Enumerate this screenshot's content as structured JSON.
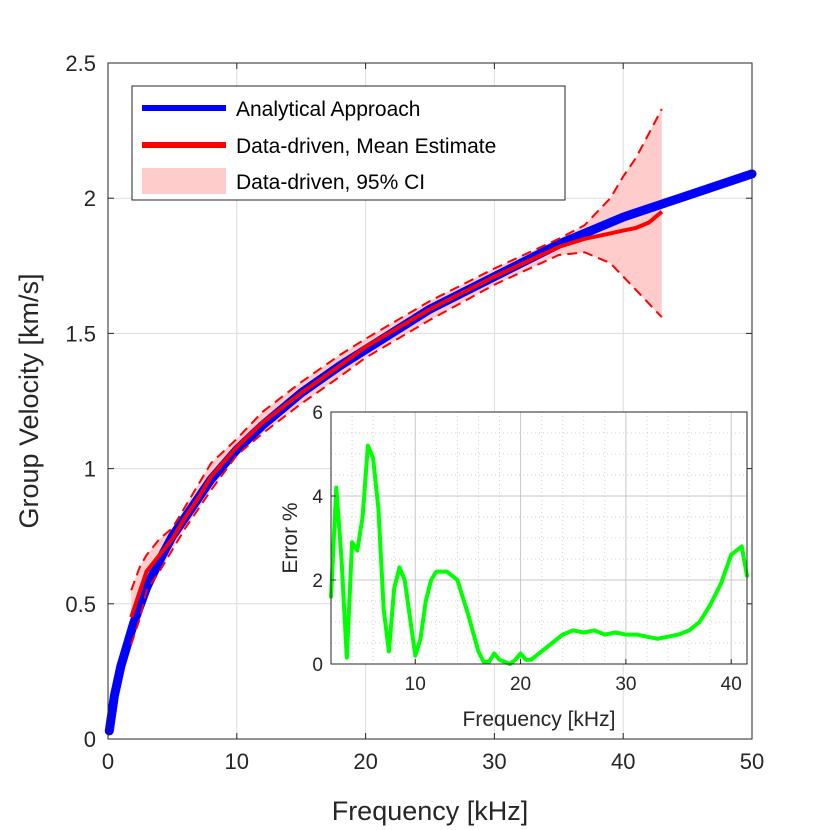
{
  "chart_data": [
    {
      "type": "line",
      "xlabel": "Frequency [kHz]",
      "ylabel": "Group Velocity [km/s]",
      "xlim": [
        0,
        50
      ],
      "ylim": [
        0,
        2.5
      ],
      "xticks": [
        "0",
        "10",
        "20",
        "30",
        "40",
        "50"
      ],
      "yticks": [
        "0",
        "0.5",
        "1",
        "1.5",
        "2",
        "2.5"
      ],
      "grid": true,
      "legend": {
        "placement": "top-left",
        "entries": [
          "Analytical Approach",
          "Data-driven, Mean Estimate",
          "Data-driven, 95% CI"
        ]
      },
      "series": [
        {
          "name": "Analytical Approach",
          "color": "#0000ff",
          "x": [
            0.1,
            0.5,
            1,
            2,
            3,
            4,
            5,
            6,
            8,
            10,
            12,
            15,
            18,
            20,
            25,
            30,
            35,
            40,
            45,
            50
          ],
          "y": [
            0.03,
            0.16,
            0.27,
            0.43,
            0.56,
            0.66,
            0.75,
            0.82,
            0.96,
            1.07,
            1.16,
            1.28,
            1.38,
            1.44,
            1.59,
            1.71,
            1.83,
            1.93,
            2.01,
            2.09
          ]
        },
        {
          "name": "Data-driven, Mean Estimate",
          "color": "#ff0000",
          "x": [
            1.8,
            2.5,
            3,
            4,
            5,
            6,
            7,
            8,
            10,
            12,
            15,
            18,
            20,
            25,
            30,
            35,
            37,
            39,
            40,
            41,
            42,
            43
          ],
          "y": [
            0.45,
            0.55,
            0.62,
            0.68,
            0.74,
            0.82,
            0.89,
            0.97,
            1.08,
            1.17,
            1.28,
            1.38,
            1.45,
            1.59,
            1.71,
            1.82,
            1.85,
            1.87,
            1.88,
            1.89,
            1.91,
            1.95
          ]
        },
        {
          "name": "Data-driven, 95% CI",
          "color": "#ff0000",
          "fill": "#ffcccc",
          "x": [
            1.8,
            2.5,
            3,
            4,
            5,
            6,
            7,
            8,
            10,
            12,
            15,
            18,
            20,
            25,
            30,
            35,
            37,
            39,
            40,
            41,
            42,
            43
          ],
          "upper": [
            0.55,
            0.64,
            0.68,
            0.74,
            0.78,
            0.86,
            0.94,
            1.02,
            1.11,
            1.21,
            1.32,
            1.42,
            1.48,
            1.62,
            1.74,
            1.85,
            1.9,
            2.0,
            2.08,
            2.15,
            2.24,
            2.33
          ],
          "lower": [
            0.35,
            0.45,
            0.55,
            0.62,
            0.7,
            0.78,
            0.85,
            0.92,
            1.05,
            1.13,
            1.24,
            1.34,
            1.41,
            1.55,
            1.68,
            1.79,
            1.8,
            1.76,
            1.71,
            1.66,
            1.61,
            1.56
          ]
        }
      ]
    },
    {
      "type": "line",
      "xlabel": "Frequency [kHz]",
      "ylabel": "Error %",
      "xlim": [
        2,
        41.5
      ],
      "ylim": [
        0,
        6
      ],
      "xticks": [
        "10",
        "20",
        "30",
        "40"
      ],
      "yticks": [
        "0",
        "2",
        "4",
        "6"
      ],
      "grid": true,
      "series": [
        {
          "color": "#00ff00",
          "x": [
            2,
            2.5,
            3,
            3.5,
            4,
            4.5,
            5,
            5.5,
            6,
            6.5,
            7,
            7.5,
            8,
            8.5,
            9,
            9.5,
            10,
            10.5,
            11,
            11.5,
            12,
            13,
            14,
            15,
            16,
            16.5,
            17,
            17.5,
            18,
            18.5,
            19,
            19.5,
            20,
            20.5,
            21,
            22,
            23,
            24,
            25,
            26,
            27,
            28,
            29,
            30,
            31,
            32,
            33,
            34,
            35,
            36,
            37,
            38,
            39,
            40,
            40.5,
            41,
            41.5
          ],
          "y": [
            1.6,
            4.2,
            2.5,
            0.15,
            2.9,
            2.7,
            3.5,
            5.2,
            4.9,
            3.7,
            1.3,
            0.3,
            1.8,
            2.3,
            2.0,
            1.1,
            0.2,
            0.6,
            1.5,
            2.0,
            2.2,
            2.2,
            2.0,
            1.2,
            0.3,
            0.05,
            0.05,
            0.25,
            0.1,
            0.05,
            0.0,
            0.1,
            0.25,
            0.1,
            0.1,
            0.3,
            0.5,
            0.7,
            0.8,
            0.75,
            0.8,
            0.7,
            0.75,
            0.7,
            0.7,
            0.65,
            0.6,
            0.65,
            0.7,
            0.8,
            1.0,
            1.4,
            1.9,
            2.6,
            2.7,
            2.8,
            2.1
          ]
        }
      ]
    }
  ],
  "icons": {
    "legend_line": "line-swatch-icon",
    "legend_patch": "patch-swatch-icon"
  }
}
